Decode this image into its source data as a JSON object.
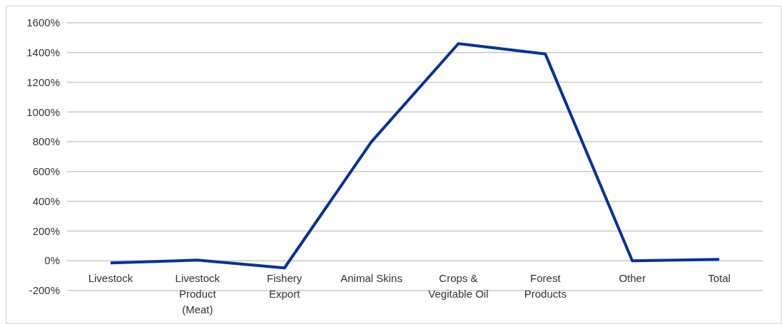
{
  "chart_data": {
    "type": "line",
    "categories": [
      "Livestock",
      "Livestock Product (Meat)",
      "Fishery Export",
      "Animal Skins",
      "Crops & Vegitable Oil",
      "Forest Products",
      "Other",
      "Total"
    ],
    "series": [
      {
        "color": "#003399",
        "values": [
          -15,
          5,
          -48,
          800,
          1460,
          1390,
          0,
          10
        ]
      }
    ],
    "ylim": [
      -200,
      1600
    ],
    "yticks": [
      {
        "value": -200,
        "label": "-200%"
      },
      {
        "value": 0,
        "label": "0%"
      },
      {
        "value": 200,
        "label": "200%"
      },
      {
        "value": 400,
        "label": "400%"
      },
      {
        "value": 600,
        "label": "600%"
      },
      {
        "value": 800,
        "label": "800%"
      },
      {
        "value": 1000,
        "label": "1000%"
      },
      {
        "value": 1200,
        "label": "1200%"
      },
      {
        "value": 1400,
        "label": "1400%"
      },
      {
        "value": 1600,
        "label": "1600%"
      }
    ],
    "grid": "y",
    "marker": "none",
    "line_style": "solid"
  }
}
